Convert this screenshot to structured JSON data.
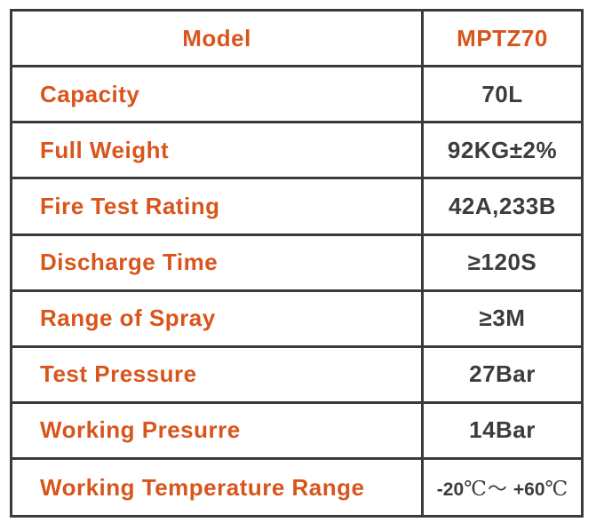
{
  "table": {
    "colors": {
      "accent_orange": "#d8551c",
      "value_text": "#3c3c3e",
      "border": "#3b3b3b",
      "background": "#ffffff"
    },
    "header": {
      "label": "Model",
      "value": "MPTZ70"
    },
    "rows": [
      {
        "label": "Capacity",
        "value": "70L"
      },
      {
        "label": "Full Weight",
        "value": "92KG±2%"
      },
      {
        "label": "Fire Test Rating",
        "value": "42A,233B"
      },
      {
        "label": "Discharge Time",
        "value": "≥120S"
      },
      {
        "label": "Range of Spray",
        "value": "≥3M"
      },
      {
        "label": "Test Pressure",
        "value": "27Bar"
      },
      {
        "label": "Working Presurre",
        "value": "14Bar"
      },
      {
        "label": "Working Temperature Range",
        "value": "-20℃～ +60℃",
        "value_parts": [
          "-20",
          "℃",
          "～",
          "+60",
          "℃"
        ]
      }
    ]
  }
}
